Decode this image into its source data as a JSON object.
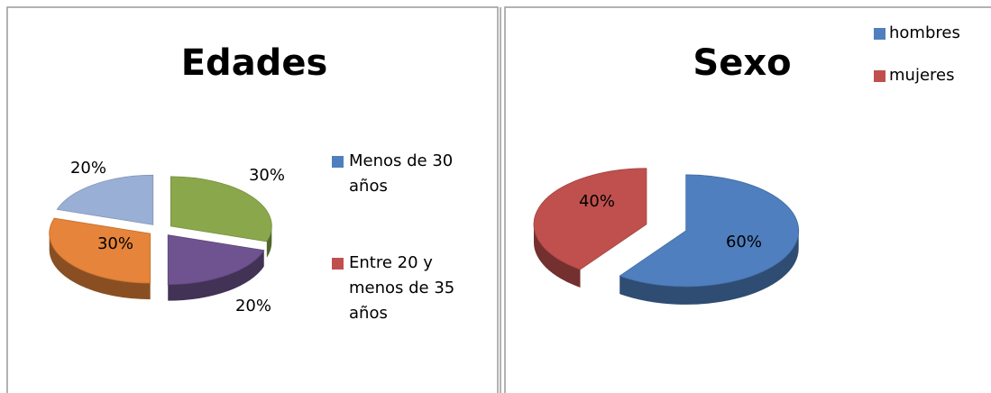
{
  "chart_data": [
    {
      "type": "pie3d",
      "title": "Edades",
      "values": [
        30,
        20,
        30,
        20
      ],
      "value_labels": [
        "30%",
        "20%",
        "30%",
        "20%"
      ],
      "colors": [
        "#8aa84b",
        "#6e5390",
        "#e5843a",
        "#9aafd6"
      ],
      "legend": [
        {
          "name": "Menos de 30 años",
          "color": "#4f7fbe"
        },
        {
          "name": "Entre 20 y menos de 35 años",
          "color": "#c0504d"
        }
      ]
    },
    {
      "type": "pie3d",
      "title": "Sexo",
      "categories": [
        "hombres",
        "mujeres"
      ],
      "values": [
        60,
        40
      ],
      "value_labels": [
        "60%",
        "40%"
      ],
      "colors": [
        "#4f7fbe",
        "#c0504d"
      ]
    }
  ]
}
